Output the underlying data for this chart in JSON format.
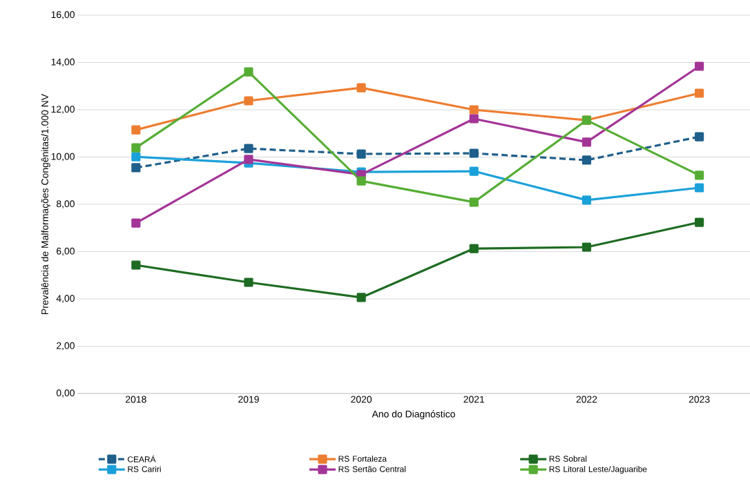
{
  "chart_data": {
    "type": "line",
    "xlabel": "Ano do Diagnóstico",
    "ylabel": "Prevalência de Malformações Congênitas/1.000 NV",
    "categories": [
      "2018",
      "2019",
      "2020",
      "2021",
      "2022",
      "2023"
    ],
    "series": [
      {
        "name": "CEARÁ",
        "color": "#1f5f8b",
        "line_style": "dashed",
        "values": [
          9.55,
          10.36,
          10.13,
          10.16,
          9.87,
          10.86
        ]
      },
      {
        "name": "RS Fortaleza",
        "color": "#ed7d31",
        "values": [
          11.15,
          12.38,
          12.93,
          12.0,
          11.56,
          12.7
        ]
      },
      {
        "name": "RS Sobral",
        "color": "#1e6b22",
        "values": [
          5.43,
          4.7,
          4.06,
          6.13,
          6.19,
          7.24
        ]
      },
      {
        "name": "RS Cariri",
        "color": "#1ba1d9",
        "values": [
          10.01,
          9.75,
          9.37,
          9.4,
          8.18,
          8.7
        ]
      },
      {
        "name": "RS Sertão Central",
        "color": "#a33597",
        "values": [
          7.21,
          9.9,
          9.26,
          11.62,
          10.63,
          13.84
        ]
      },
      {
        "name": "RS Litoral Leste/Jaguaribe",
        "color": "#56ad34",
        "values": [
          10.39,
          13.6,
          8.99,
          8.09,
          11.56,
          9.23
        ]
      }
    ],
    "ylim": [
      0,
      16
    ],
    "yticks": [
      {
        "value": 0,
        "label": "0,00"
      },
      {
        "value": 2,
        "label": "2,00"
      },
      {
        "value": 4,
        "label": "4,00"
      },
      {
        "value": 6,
        "label": "6,00"
      },
      {
        "value": 8,
        "label": "8,00"
      },
      {
        "value": 10,
        "label": "10,00"
      },
      {
        "value": 12,
        "label": "12,00"
      },
      {
        "value": 14,
        "label": "14,00"
      },
      {
        "value": 16,
        "label": "16,00"
      }
    ],
    "grid": "y",
    "legend": "bottom",
    "marker": "square",
    "line_style": "solid"
  }
}
